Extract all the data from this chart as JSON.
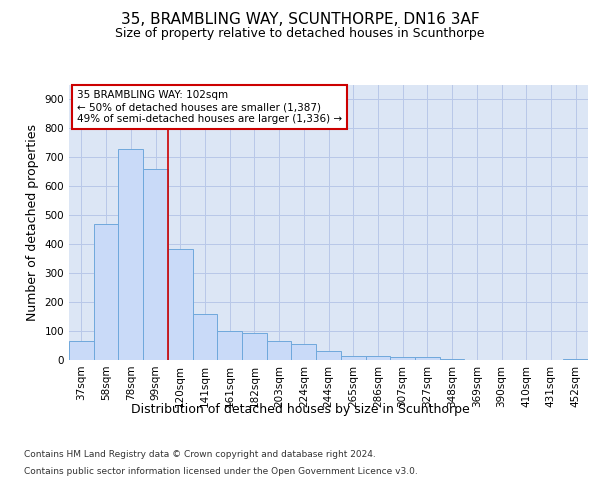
{
  "title": "35, BRAMBLING WAY, SCUNTHORPE, DN16 3AF",
  "subtitle": "Size of property relative to detached houses in Scunthorpe",
  "xlabel": "Distribution of detached houses by size in Scunthorpe",
  "ylabel": "Number of detached properties",
  "categories": [
    "37sqm",
    "58sqm",
    "78sqm",
    "99sqm",
    "120sqm",
    "141sqm",
    "161sqm",
    "182sqm",
    "203sqm",
    "224sqm",
    "244sqm",
    "265sqm",
    "286sqm",
    "307sqm",
    "327sqm",
    "348sqm",
    "369sqm",
    "390sqm",
    "410sqm",
    "431sqm",
    "452sqm"
  ],
  "values": [
    65,
    470,
    730,
    660,
    385,
    160,
    100,
    95,
    65,
    55,
    30,
    15,
    15,
    10,
    10,
    5,
    0,
    0,
    0,
    0,
    5
  ],
  "bar_color": "#c9daf8",
  "bar_edge_color": "#6fa8dc",
  "red_line_x": 3.5,
  "annotation_text": "35 BRAMBLING WAY: 102sqm\n← 50% of detached houses are smaller (1,387)\n49% of semi-detached houses are larger (1,336) →",
  "annotation_box_color": "#ffffff",
  "annotation_box_edge": "#cc0000",
  "ylim": [
    0,
    950
  ],
  "yticks": [
    0,
    100,
    200,
    300,
    400,
    500,
    600,
    700,
    800,
    900
  ],
  "footer_line1": "Contains HM Land Registry data © Crown copyright and database right 2024.",
  "footer_line2": "Contains public sector information licensed under the Open Government Licence v3.0.",
  "background_color": "#ffffff",
  "plot_bg_color": "#dce6f5",
  "grid_color": "#b8c8e8",
  "title_fontsize": 11,
  "subtitle_fontsize": 9,
  "axis_label_fontsize": 9,
  "tick_fontsize": 7.5,
  "annotation_fontsize": 7.5
}
